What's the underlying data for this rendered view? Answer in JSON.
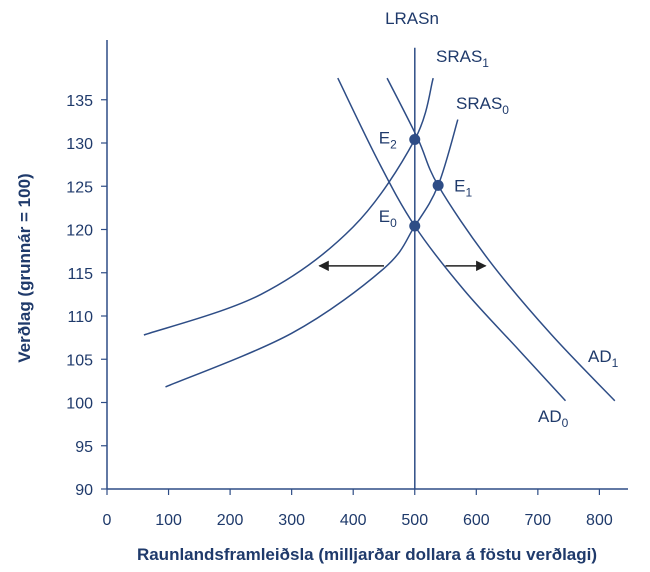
{
  "chart_data": {
    "type": "line",
    "title": "",
    "xlabel": "Raunlandsframleiðsla (milljarðar dollara á föstu verðlagi)",
    "ylabel": "Verðlag (grunnár = 100)",
    "xlim": [
      0,
      850
    ],
    "ylim": [
      90,
      140
    ],
    "xticks": [
      0,
      100,
      200,
      300,
      400,
      500,
      600,
      700,
      800
    ],
    "yticks": [
      90,
      95,
      100,
      105,
      110,
      115,
      120,
      125,
      130,
      135
    ],
    "grid": false,
    "series": [
      {
        "name": "AD",
        "sub": "0",
        "color": "#2e4d86",
        "points": [
          [
            375,
            137.5
          ],
          [
            440,
            128
          ],
          [
            500,
            120.4
          ],
          [
            580,
            113
          ],
          [
            670,
            106
          ],
          [
            745,
            100.2
          ]
        ]
      },
      {
        "name": "AD",
        "sub": "1",
        "color": "#2e4d86",
        "points": [
          [
            455,
            137.5
          ],
          [
            505,
            130.5
          ],
          [
            538,
            125.1
          ],
          [
            620,
            116.5
          ],
          [
            720,
            108
          ],
          [
            825,
            100.2
          ]
        ]
      },
      {
        "name": "SRAS",
        "sub": "1",
        "color": "#2e4d86",
        "points": [
          [
            60,
            107.8
          ],
          [
            250,
            112.5
          ],
          [
            400,
            120.3
          ],
          [
            500,
            130.4
          ],
          [
            530,
            137.5
          ]
        ]
      },
      {
        "name": "SRAS",
        "sub": "0",
        "color": "#2e4d86",
        "points": [
          [
            95,
            101.8
          ],
          [
            300,
            108
          ],
          [
            450,
            115.5
          ],
          [
            500,
            120.4
          ],
          [
            538,
            125.1
          ],
          [
            570,
            132.7
          ]
        ]
      },
      {
        "name": "LRASn",
        "sub": "",
        "color": "#2e4d86",
        "points": [
          [
            500,
            90
          ],
          [
            500,
            141
          ]
        ]
      }
    ],
    "equilibria": [
      {
        "name": "E",
        "sub": "0",
        "x": 500,
        "y": 120.4
      },
      {
        "name": "E",
        "sub": "1",
        "x": 538,
        "y": 125.1
      },
      {
        "name": "E",
        "sub": "2",
        "x": 500,
        "y": 130.4
      }
    ],
    "arrows": [
      {
        "direction": "left",
        "y": 115.8,
        "from_x": 450,
        "to_x": 345
      },
      {
        "direction": "right",
        "y": 115.8,
        "from_x": 550,
        "to_x": 615
      }
    ]
  }
}
